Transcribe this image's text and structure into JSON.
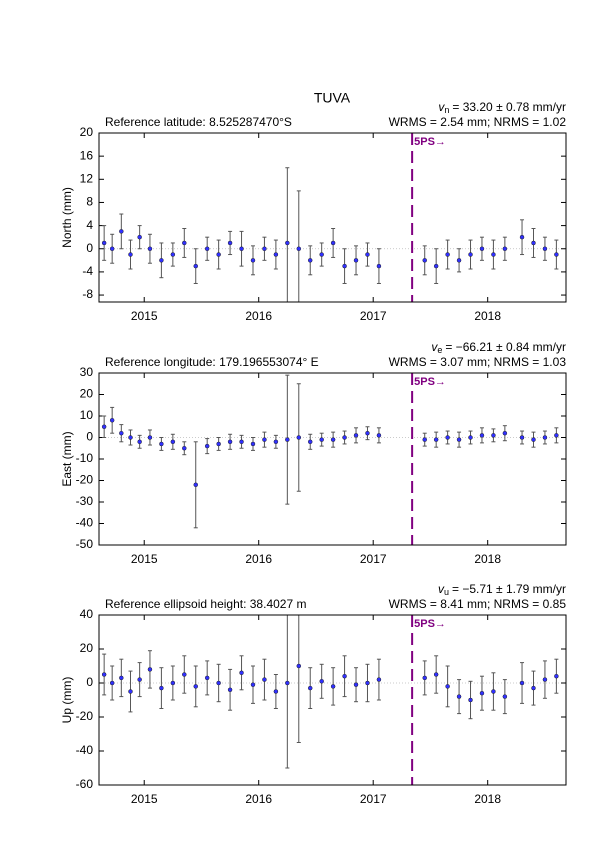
{
  "chart_data": [
    {
      "type": "errorbar",
      "title": "TUVA",
      "reference": "Reference latitude: 8.525287470°S",
      "velocity": {
        "symbol": "v",
        "subscript": "n",
        "text": "= 33.20 ± 0.78 mm/yr"
      },
      "stats": "WRMS = 2.54 mm; NRMS = 1.02",
      "ylabel": "North (mm)",
      "xlim": [
        2014.605,
        2018.684
      ],
      "xticks": [
        2015,
        2016,
        2017,
        2018
      ],
      "ylim": [
        -9.2,
        20
      ],
      "yticks": [
        -8,
        -4,
        0,
        4,
        8,
        12,
        16,
        20
      ],
      "event": {
        "x": 2017.34,
        "label": "5PS→",
        "color": "#800080"
      },
      "point_color": "#3030ff",
      "error_color": "#555555",
      "x": [
        2014.65,
        2014.72,
        2014.8,
        2014.88,
        2014.96,
        2015.05,
        2015.15,
        2015.25,
        2015.35,
        2015.45,
        2015.55,
        2015.65,
        2015.75,
        2015.85,
        2015.95,
        2016.05,
        2016.15,
        2016.25,
        2016.35,
        2016.45,
        2016.55,
        2016.65,
        2016.75,
        2016.85,
        2016.95,
        2017.05,
        2017.45,
        2017.55,
        2017.65,
        2017.75,
        2017.85,
        2017.95,
        2018.05,
        2018.15,
        2018.3,
        2018.4,
        2018.5,
        2018.6
      ],
      "values": [
        1,
        0,
        3,
        -1,
        2,
        0,
        -2,
        -1,
        1,
        -3,
        0,
        -1,
        1,
        0,
        -2,
        0,
        -1,
        1,
        0,
        -2,
        -1,
        1,
        -3,
        -2,
        -1,
        -3,
        -2,
        -3,
        -1,
        -2,
        -1,
        0,
        -1,
        0,
        2,
        1,
        0,
        -1
      ],
      "errors": [
        3,
        2.5,
        3,
        2.5,
        2,
        2.5,
        3,
        2,
        2.5,
        3,
        2,
        2.5,
        2,
        3,
        2.5,
        2,
        2.5,
        13,
        10,
        2.5,
        2,
        2.5,
        3,
        2.5,
        2,
        3,
        2.5,
        3,
        2.5,
        2,
        2.5,
        2,
        2.5,
        2,
        3,
        2.5,
        2,
        2.5
      ]
    },
    {
      "type": "errorbar",
      "reference": "Reference longitude: 179.196553074° E",
      "velocity": {
        "symbol": "v",
        "subscript": "e",
        "text": "= −66.21 ± 0.84 mm/yr"
      },
      "stats": "WRMS = 3.07 mm; NRMS = 1.03",
      "ylabel": "East (mm)",
      "xlim": [
        2014.605,
        2018.684
      ],
      "xticks": [
        2015,
        2016,
        2017,
        2018
      ],
      "ylim": [
        -50,
        30
      ],
      "yticks": [
        -50,
        -40,
        -30,
        -20,
        -10,
        0,
        10,
        20,
        30
      ],
      "event": {
        "x": 2017.34,
        "label": "5PS→",
        "color": "#800080"
      },
      "point_color": "#3030ff",
      "error_color": "#555555",
      "x": [
        2014.65,
        2014.72,
        2014.8,
        2014.88,
        2014.96,
        2015.05,
        2015.15,
        2015.25,
        2015.35,
        2015.45,
        2015.55,
        2015.65,
        2015.75,
        2015.85,
        2015.95,
        2016.05,
        2016.15,
        2016.25,
        2016.35,
        2016.45,
        2016.55,
        2016.65,
        2016.75,
        2016.85,
        2016.95,
        2017.05,
        2017.45,
        2017.55,
        2017.65,
        2017.75,
        2017.85,
        2017.95,
        2018.05,
        2018.15,
        2018.3,
        2018.4,
        2018.5,
        2018.6
      ],
      "values": [
        5,
        8,
        2,
        0,
        -2,
        0,
        -3,
        -2,
        -5,
        -22,
        -4,
        -3,
        -2,
        -2,
        -3,
        -1,
        -2,
        -1,
        0,
        -2,
        -1,
        -1,
        0,
        1,
        2,
        1,
        -1,
        -1,
        0,
        -1,
        0,
        1,
        1,
        2,
        0,
        -1,
        0,
        1
      ],
      "errors": [
        5,
        6,
        4,
        3.5,
        3,
        3.5,
        3,
        3.5,
        3,
        20,
        3.5,
        3,
        3.5,
        3,
        3,
        3.5,
        3,
        30,
        25,
        3.5,
        3,
        3.5,
        3,
        3.5,
        3,
        3.5,
        3,
        3.5,
        3,
        3.5,
        3,
        3.5,
        3,
        3.5,
        3,
        3.5,
        3,
        3.5
      ]
    },
    {
      "type": "errorbar",
      "reference": "Reference ellipsoid height: 38.4027 m",
      "velocity": {
        "symbol": "v",
        "subscript": "u",
        "text": "= −5.71 ± 1.79 mm/yr"
      },
      "stats": "WRMS = 8.41 mm; NRMS = 0.85",
      "ylabel": "Up (mm)",
      "xlim": [
        2014.605,
        2018.684
      ],
      "xticks": [
        2015,
        2016,
        2017,
        2018
      ],
      "ylim": [
        -60,
        40
      ],
      "yticks": [
        -60,
        -40,
        -20,
        0,
        20,
        40
      ],
      "event": {
        "x": 2017.34,
        "label": "5PS→",
        "color": "#800080"
      },
      "point_color": "#3030ff",
      "error_color": "#555555",
      "x": [
        2014.65,
        2014.72,
        2014.8,
        2014.88,
        2014.96,
        2015.05,
        2015.15,
        2015.25,
        2015.35,
        2015.45,
        2015.55,
        2015.65,
        2015.75,
        2015.85,
        2015.95,
        2016.05,
        2016.15,
        2016.25,
        2016.35,
        2016.45,
        2016.55,
        2016.65,
        2016.75,
        2016.85,
        2016.95,
        2017.05,
        2017.45,
        2017.55,
        2017.65,
        2017.75,
        2017.85,
        2017.95,
        2018.05,
        2018.15,
        2018.3,
        2018.4,
        2018.5,
        2018.6
      ],
      "values": [
        5,
        0,
        3,
        -5,
        2,
        8,
        -3,
        0,
        5,
        -2,
        3,
        0,
        -4,
        6,
        -1,
        2,
        -5,
        0,
        10,
        -3,
        1,
        -2,
        4,
        -1,
        0,
        2,
        3,
        5,
        -2,
        -8,
        -10,
        -6,
        -5,
        -8,
        0,
        -3,
        2,
        4
      ],
      "errors": [
        12,
        10,
        11,
        12,
        10,
        11,
        12,
        10,
        11,
        12,
        10,
        11,
        12,
        10,
        11,
        12,
        10,
        50,
        45,
        12,
        10,
        11,
        12,
        10,
        11,
        12,
        10,
        11,
        12,
        10,
        11,
        10,
        11,
        10,
        12,
        10,
        11,
        10
      ]
    }
  ]
}
